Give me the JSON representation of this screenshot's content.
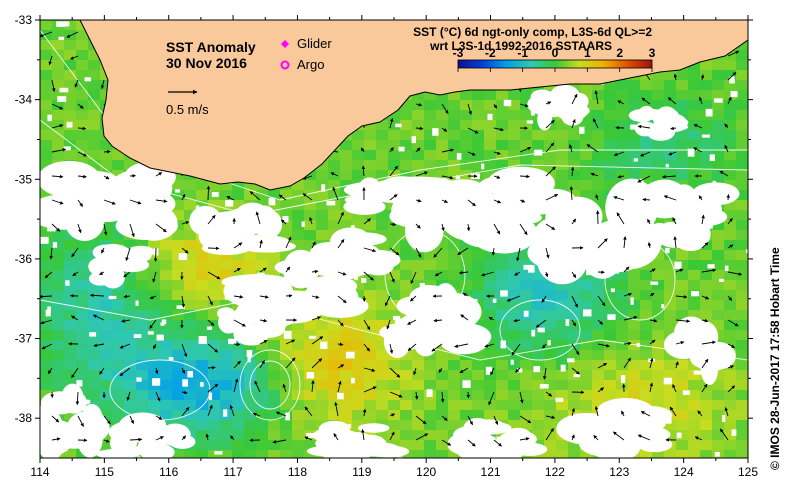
{
  "map": {
    "title": "SST Anomaly",
    "date": "30 Nov 2016",
    "scale_label": "0.5 m/s",
    "legend": [
      {
        "name": "Glider",
        "symbol": "diamond",
        "color": "#ff00ff"
      },
      {
        "name": "Argo",
        "symbol": "ring",
        "color": "#ff00ff"
      }
    ],
    "info_lines": [
      "SST (°C) 6d ngt-only comp, L3S-6d QL>=2",
      "wrt L3S-1d 1992-2016 SSTAARS"
    ],
    "credit": "© IMOS 28-Jun-2017 17:58 Hobart Time",
    "land_color": "#f9c89b",
    "lon_range": [
      114,
      125
    ],
    "lat_range": [
      -38.5,
      -33
    ],
    "lon_ticks": [
      "114",
      "115",
      "116",
      "117",
      "118",
      "119",
      "120",
      "121",
      "122",
      "123",
      "124",
      "125"
    ],
    "lat_ticks": [
      "-33",
      "-34",
      "-35",
      "-36",
      "-37",
      "-38"
    ]
  },
  "colorbar": {
    "range": [
      -3,
      3
    ],
    "labels": [
      "-3",
      "-2",
      "-1",
      "0",
      "1",
      "2",
      "3"
    ],
    "colors": [
      "#101090",
      "#0040d8",
      "#00a0e8",
      "#30c8b0",
      "#38c838",
      "#c8dc20",
      "#f0b000",
      "#e05000",
      "#a01010"
    ]
  }
}
